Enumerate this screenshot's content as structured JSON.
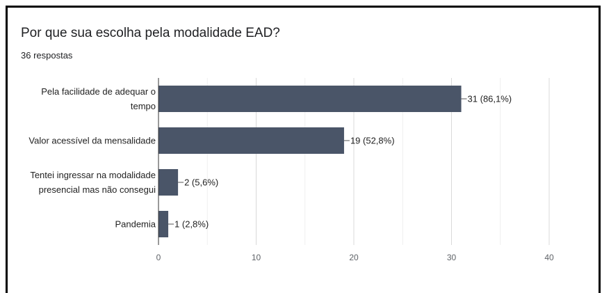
{
  "chart_data": {
    "type": "bar",
    "orientation": "horizontal",
    "title": "Por que sua escolha pela modalidade EAD?",
    "subtitle": "36 respostas",
    "categories": [
      [
        "Pela facilidade de adequar o",
        "tempo"
      ],
      [
        "Valor acessível da mensalidade"
      ],
      [
        "Tentei ingressar na modalidade",
        "presencial mas não consegui"
      ],
      [
        "Pandemia"
      ]
    ],
    "values": [
      31,
      19,
      2,
      1
    ],
    "data_labels": [
      "31 (86,1%)",
      "19 (52,8%)",
      "2 (5,6%)",
      "1 (2,8%)"
    ],
    "xlim": [
      0,
      40
    ],
    "xticks": [
      0,
      10,
      20,
      30,
      40
    ],
    "grid": true,
    "bar_color": "#4a5568"
  }
}
